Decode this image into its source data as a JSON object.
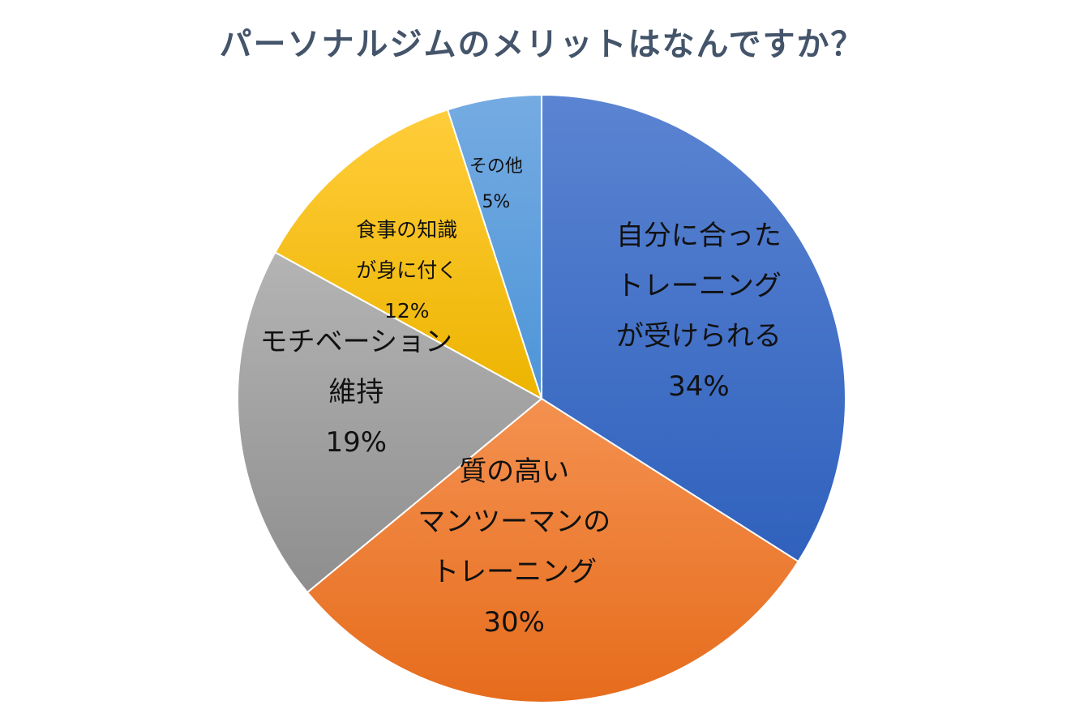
{
  "chart_data": {
    "type": "pie",
    "title": "パーソナルジムのメリットはなんですか？",
    "start_angle_deg": 0,
    "direction": "clockwise",
    "legend": "none",
    "slices": [
      {
        "label_lines": [
          "自分に合った",
          "トレーニング",
          "が受けられる"
        ],
        "value": 34,
        "value_label": "34%",
        "color_top": "#5b84d2",
        "color_bottom": "#2f61bd"
      },
      {
        "label_lines": [
          "質の高い",
          "マンツーマンの",
          "トレーニング"
        ],
        "value": 30,
        "value_label": "30%",
        "color_top": "#f49150",
        "color_bottom": "#e66c1c"
      },
      {
        "label_lines": [
          "モチベーション",
          "維持"
        ],
        "value": 19,
        "value_label": "19%",
        "color_top": "#b4b4b4",
        "color_bottom": "#8e8e8e"
      },
      {
        "label_lines": [
          "食事の知識",
          "が身に付く"
        ],
        "value": 12,
        "value_label": "12%",
        "color_top": "#ffcd3a",
        "color_bottom": "#edb400"
      },
      {
        "label_lines": [
          "その他"
        ],
        "value": 5,
        "value_label": "5%",
        "color_top": "#75abe2",
        "color_bottom": "#4d95d8"
      }
    ]
  }
}
